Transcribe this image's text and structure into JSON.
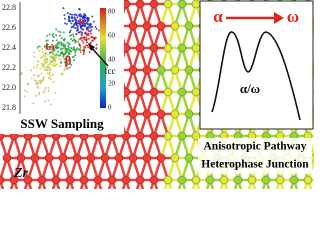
{
  "sampling_panel": {
    "y_tick_labels": [
      "22.8",
      "22.6",
      "22.4",
      "22.2",
      "22.0",
      "21.8"
    ],
    "colorbar_tick_labels": [
      "80",
      "60",
      "40",
      "20",
      "0"
    ],
    "phase_labels": [
      "α",
      "ω",
      "β"
    ],
    "marker_label": "fcc",
    "caption": "SSW Sampling"
  },
  "pathway_panel": {
    "start_phase": "α",
    "end_phase": "ω",
    "junction_label": "α/ω",
    "caption_lines": [
      "Anisotropic Pathway",
      "Heterophase Junction"
    ]
  },
  "element_label": "Zr"
}
